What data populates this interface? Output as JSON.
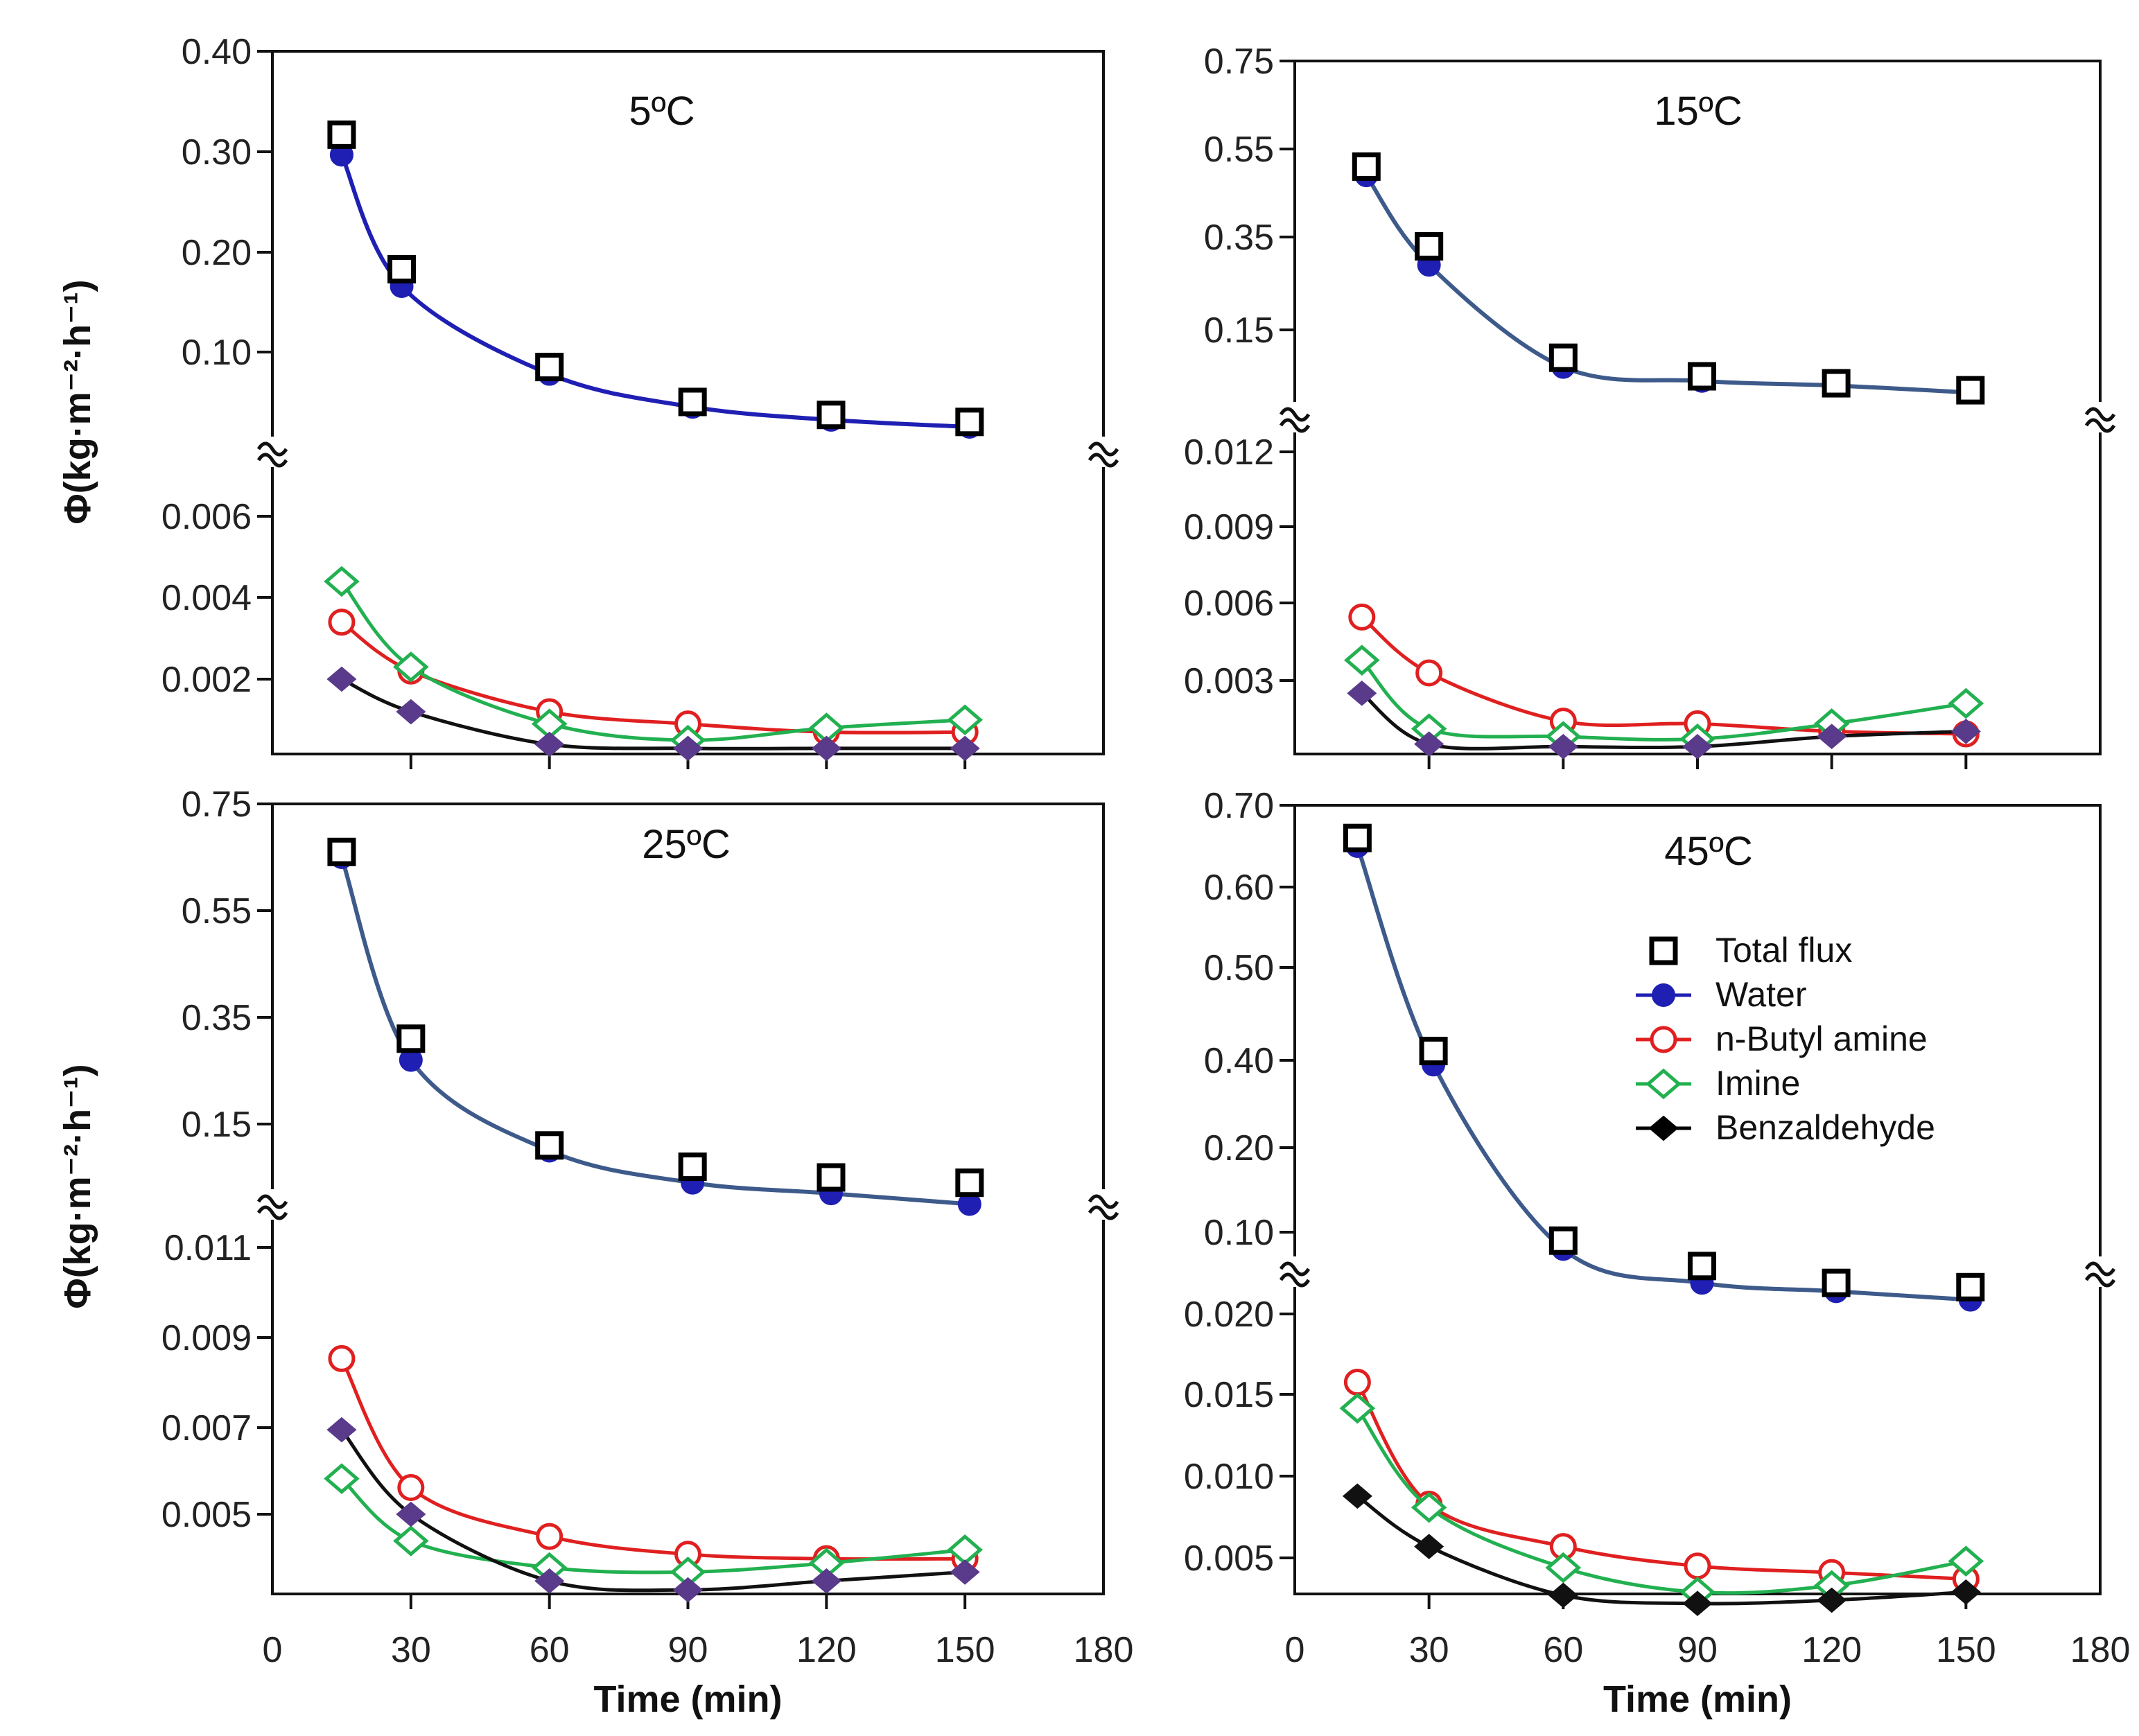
{
  "chart_data": [
    {
      "type": "scatter",
      "title": "5ºC",
      "xlabel": "",
      "ylabel": "Φ(kg·m⁻²·h⁻¹)",
      "xlim": [
        0,
        180
      ],
      "x_ticks": [
        "30",
        "60",
        "90",
        "120",
        "150"
      ],
      "broken_y_axis": true,
      "upper": {
        "ylim": [
          0.02,
          0.4
        ],
        "y_ticks": [
          "0.40",
          "0.30",
          "0.20",
          "0.10"
        ],
        "series": [
          {
            "name": "Total flux",
            "marker": "open-square",
            "x": [
              15,
              28,
              60,
              91,
              121,
              151
            ],
            "y": [
              0.317,
              0.183,
              0.085,
              0.05,
              0.037,
              0.03
            ]
          },
          {
            "name": "Water",
            "marker": "filled-circle",
            "x": [
              15,
              28,
              60,
              91,
              121,
              151
            ],
            "y": [
              0.297,
              0.166,
              0.078,
              0.045,
              0.032,
              0.025
            ]
          }
        ]
      },
      "lower": {
        "ylim": [
          0,
          0.0066
        ],
        "y_ticks": [
          "0.006",
          "0.004",
          "0.002"
        ],
        "series": [
          {
            "name": "n-Butyl amine",
            "marker": "open-circle",
            "x": [
              15,
              30,
              60,
              90,
              120,
              150
            ],
            "y": [
              0.0034,
              0.0022,
              0.0012,
              0.0009,
              0.0007,
              0.0007
            ]
          },
          {
            "name": "Imine",
            "marker": "open-diamond",
            "x": [
              15,
              30,
              60,
              90,
              120,
              150
            ],
            "y": [
              0.0044,
              0.0023,
              0.0009,
              0.0005,
              0.0008,
              0.001
            ]
          },
          {
            "name": "Benzaldehyde",
            "marker": "filled-diamond",
            "x": [
              15,
              30,
              60,
              90,
              120,
              150
            ],
            "y": [
              0.002,
              0.0012,
              0.0004,
              0.0003,
              0.0003,
              0.0003
            ]
          }
        ]
      }
    },
    {
      "type": "scatter",
      "title": "15ºC",
      "xlabel": "",
      "ylabel": "",
      "xlim": [
        0,
        180
      ],
      "x_ticks": [
        "30",
        "60",
        "90",
        "120",
        "150"
      ],
      "broken_y_axis": true,
      "upper": {
        "ylim": [
          0.0,
          0.75
        ],
        "y_ticks": [
          "0.75",
          "0.55",
          "0.35",
          "0.15"
        ],
        "series": [
          {
            "name": "Total flux",
            "marker": "open-square",
            "x": [
              16,
              30,
              60,
              91,
              121,
              151
            ],
            "y": [
              0.51,
              0.33,
              0.09,
              0.05,
              0.035,
              0.02
            ]
          },
          {
            "name": "Water",
            "marker": "filled-circle",
            "x": [
              16,
              30,
              60,
              91,
              121,
              151
            ],
            "y": [
              0.49,
              0.29,
              0.07,
              0.04,
              0.03,
              0.015
            ]
          }
        ]
      },
      "lower": {
        "ylim": [
          0,
          0.0128
        ],
        "y_ticks": [
          "0.012",
          "0.009",
          "0.006",
          "0.003"
        ],
        "series": [
          {
            "name": "n-Butyl amine",
            "marker": "open-circle",
            "x": [
              15,
              30,
              60,
              90,
              120,
              150
            ],
            "y": [
              0.0055,
              0.0033,
              0.0014,
              0.0013,
              0.001,
              0.0009
            ]
          },
          {
            "name": "Imine",
            "marker": "open-diamond",
            "x": [
              15,
              30,
              60,
              90,
              120,
              150
            ],
            "y": [
              0.0038,
              0.0011,
              0.0008,
              0.0007,
              0.0013,
              0.0021
            ]
          },
          {
            "name": "Benzaldehyde",
            "marker": "filled-diamond",
            "x": [
              15,
              30,
              60,
              90,
              120,
              150
            ],
            "y": [
              0.0025,
              0.0005,
              0.0004,
              0.0004,
              0.0008,
              0.001
            ]
          }
        ]
      }
    },
    {
      "type": "scatter",
      "title": "25ºC",
      "xlabel": "Time (min)",
      "ylabel": "Φ(kg·m⁻²·h⁻¹)",
      "xlim": [
        0,
        180
      ],
      "x_ticks": [
        "0",
        "30",
        "60",
        "90",
        "120",
        "150",
        "180"
      ],
      "broken_y_axis": true,
      "upper": {
        "ylim": [
          0.0,
          0.75
        ],
        "y_ticks": [
          "0.75",
          "0.55",
          "0.35",
          "0.15"
        ],
        "series": [
          {
            "name": "Total flux",
            "marker": "open-square",
            "x": [
              15,
              30,
              60,
              91,
              121,
              151
            ],
            "y": [
              0.66,
              0.31,
              0.11,
              0.07,
              0.05,
              0.04
            ]
          },
          {
            "name": "Water",
            "marker": "filled-circle",
            "x": [
              15,
              30,
              60,
              91,
              121,
              151
            ],
            "y": [
              0.65,
              0.27,
              0.1,
              0.04,
              0.02,
              0.0
            ]
          }
        ]
      },
      "lower": {
        "ylim": [
          0.0023,
          0.0113
        ],
        "y_ticks": [
          "0.011",
          "0.009",
          "0.007",
          "0.005"
        ],
        "series": [
          {
            "name": "n-Butyl amine",
            "marker": "open-circle",
            "x": [
              15,
              30,
              60,
              90,
              120,
              150
            ],
            "y": [
              0.0085,
              0.0056,
              0.0045,
              0.0041,
              0.004,
              0.004
            ]
          },
          {
            "name": "Imine",
            "marker": "open-diamond",
            "x": [
              15,
              30,
              60,
              90,
              120,
              150
            ],
            "y": [
              0.0058,
              0.0044,
              0.0038,
              0.0037,
              0.0039,
              0.0042
            ]
          },
          {
            "name": "Benzaldehyde",
            "marker": "filled-diamond",
            "x": [
              15,
              30,
              60,
              90,
              120,
              150
            ],
            "y": [
              0.0069,
              0.005,
              0.0035,
              0.0033,
              0.0035,
              0.0037
            ]
          }
        ]
      }
    },
    {
      "type": "scatter",
      "title": "45ºC",
      "xlabel": "Time (min)",
      "ylabel": "",
      "xlim": [
        0,
        180
      ],
      "x_ticks": [
        "0",
        "30",
        "60",
        "90",
        "120",
        "150",
        "180"
      ],
      "broken_y_axis": true,
      "legend_position": "right",
      "upper": {
        "ylim": [
          0.05,
          0.7
        ],
        "y_ticks": [
          "0.70",
          "0.60",
          "0.50",
          "0.40",
          "0.20",
          "0.10"
        ],
        "tick_spacing_irregular": true,
        "series": [
          {
            "name": "Total flux",
            "marker": "open-square",
            "x": [
              14,
              31,
              60,
              91,
              121,
              151
            ],
            "y": [
              0.66,
              0.41,
              0.09,
              0.06,
              0.04,
              0.035
            ]
          },
          {
            "name": "Water",
            "marker": "filled-circle",
            "x": [
              14,
              31,
              60,
              91,
              121,
              151
            ],
            "y": [
              0.65,
              0.39,
              0.08,
              0.04,
              0.03,
              0.02
            ]
          }
        ]
      },
      "lower": {
        "ylim": [
          0.0014,
          0.0212
        ],
        "y_ticks": [
          "0.020",
          "0.015",
          "0.010",
          "0.005"
        ],
        "series": [
          {
            "name": "n-Butyl amine",
            "marker": "open-circle",
            "x": [
              14,
              30,
              60,
              90,
              120,
              150
            ],
            "y": [
              0.0158,
              0.0083,
              0.0057,
              0.0045,
              0.0041,
              0.0037
            ]
          },
          {
            "name": "Imine",
            "marker": "open-diamond",
            "x": [
              14,
              30,
              60,
              90,
              120,
              150
            ],
            "y": [
              0.0142,
              0.0081,
              0.0044,
              0.0029,
              0.0033,
              0.0048
            ]
          },
          {
            "name": "Benzaldehyde",
            "marker": "filled-diamond",
            "x": [
              14,
              30,
              60,
              90,
              120,
              150
            ],
            "y": [
              0.0088,
              0.0057,
              0.0027,
              0.0022,
              0.0024,
              0.0029
            ]
          }
        ]
      }
    }
  ],
  "legend": {
    "items": [
      {
        "label": "Total flux",
        "marker": "open-square",
        "color": "#000000"
      },
      {
        "label": "Water",
        "marker": "filled-circle",
        "color": "#1f1fb4"
      },
      {
        "label": "n-Butyl amine",
        "marker": "open-circle",
        "color": "#e02020"
      },
      {
        "label": "Imine",
        "marker": "open-diamond",
        "color": "#22b050"
      },
      {
        "label": "Benzaldehyde",
        "marker": "filled-diamond",
        "color": "#000000"
      }
    ]
  },
  "colors": {
    "total_flux": "#000000",
    "water": "#1f1fb4",
    "water_curve": "#3d5a8a",
    "n_butyl_amine": "#e02020",
    "imine": "#22b050",
    "benzaldehyde": "#111111",
    "benzaldehyde_lowT": "#5a3a8a"
  }
}
